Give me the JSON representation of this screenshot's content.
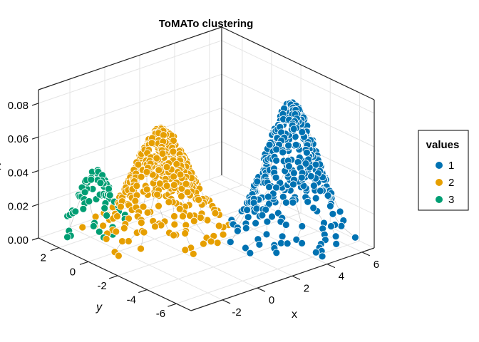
{
  "chart_data": {
    "type": "scatter",
    "subtype": "3d-scatter",
    "title": "ToMATo clustering",
    "xlabel": "x",
    "ylabel": "y",
    "zlabel": "z",
    "xlim": [
      -3.8,
      6.7
    ],
    "ylim": [
      -7.0,
      3.4
    ],
    "zlim": [
      0,
      0.088
    ],
    "xticks": [
      -2,
      0,
      2,
      4,
      6
    ],
    "yticks": [
      2,
      0,
      -2,
      -4,
      -6
    ],
    "zticks": [
      "0.00",
      "0.02",
      "0.04",
      "0.06",
      "0.08"
    ],
    "grid": true,
    "legend": {
      "title": "values",
      "placement": "right",
      "entries": [
        {
          "label": "1",
          "color": "#0072b2"
        },
        {
          "label": "2",
          "color": "#e69f00"
        },
        {
          "label": "3",
          "color": "#009e73"
        }
      ]
    },
    "clusters": [
      {
        "value": 1,
        "color": "#0072b2",
        "center": [
          4.8,
          -3.6
        ],
        "sigma": 1.15,
        "peak_z": 0.077,
        "count": 420
      },
      {
        "value": 2,
        "color": "#e69f00",
        "center": [
          1.0,
          0.7
        ],
        "sigma": 1.2,
        "peak_z": 0.058,
        "count": 420
      },
      {
        "value": 3,
        "color": "#009e73",
        "center": [
          -1.2,
          2.6
        ],
        "sigma": 0.7,
        "peak_z": 0.034,
        "count": 90
      }
    ]
  }
}
